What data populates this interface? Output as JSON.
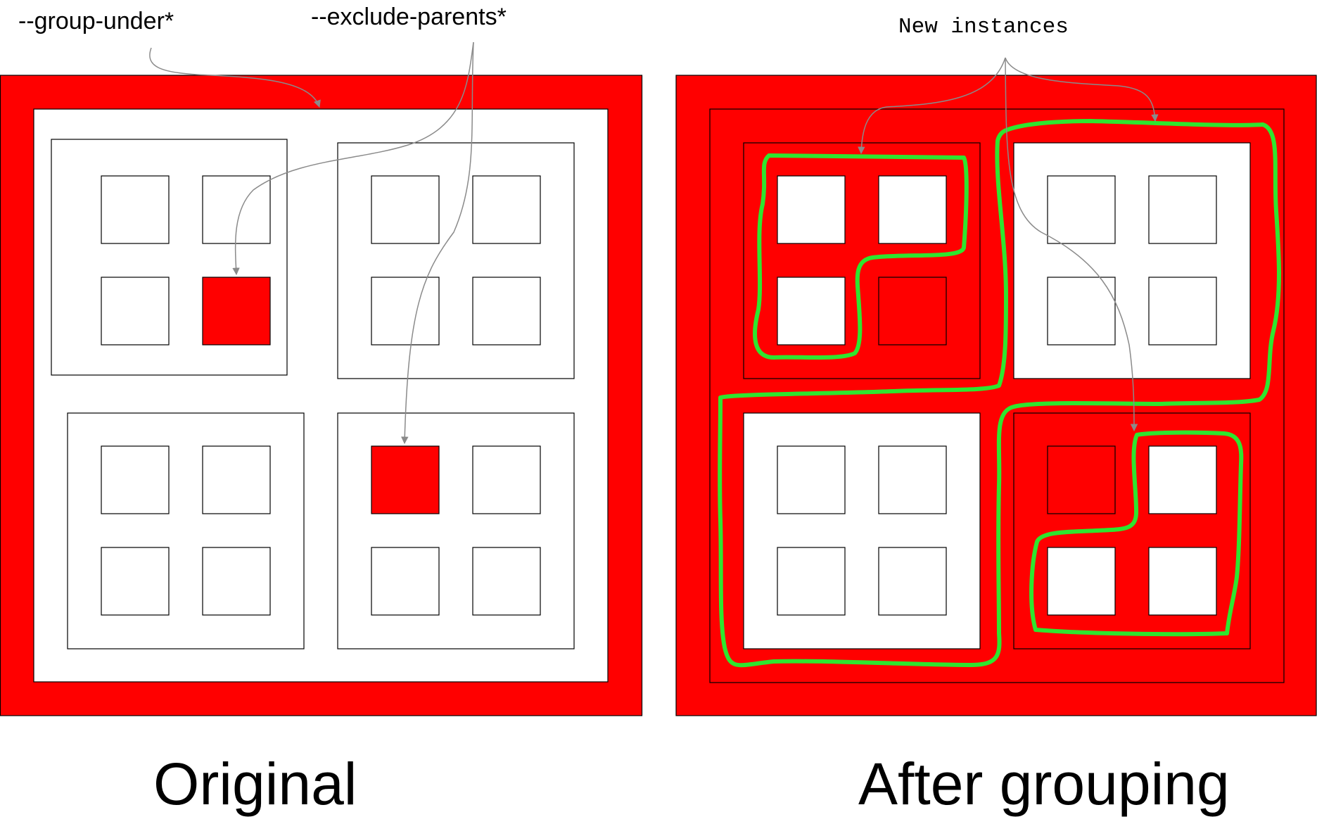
{
  "annotations": {
    "group_under": "--group-under*",
    "exclude_parents": "--exclude-parents*",
    "new_instances": "New instances"
  },
  "captions": {
    "original": "Original",
    "after_grouping": "After grouping"
  },
  "colors": {
    "fill_red": "#ff0000",
    "fill_white": "#ffffff",
    "outline_black": "#000000",
    "group_green": "#2ee62e",
    "arrow_gray": "#8a8a8a"
  }
}
